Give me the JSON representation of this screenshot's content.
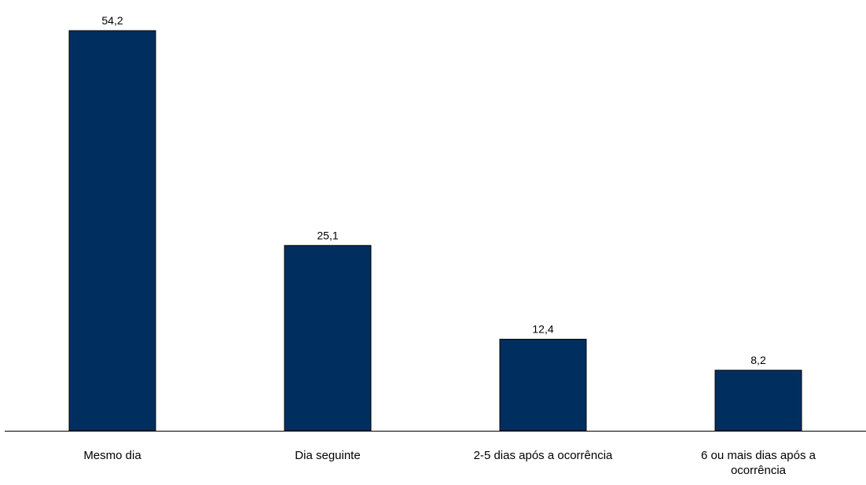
{
  "chart_data": {
    "type": "bar",
    "title": "",
    "xlabel": "",
    "ylabel": "",
    "categories": [
      [
        "Mesmo dia"
      ],
      [
        "Dia seguinte"
      ],
      [
        "2-5 dias após a ocorrência"
      ],
      [
        "6 ou mais dias após a",
        "ocorrência"
      ]
    ],
    "values": [
      54.2,
      25.1,
      12.4,
      8.2
    ],
    "value_labels": [
      "54,2",
      "25,1",
      "12,4",
      "8,2"
    ],
    "ylim": [
      0,
      54.2
    ],
    "y_axis_visible": false,
    "grid": false,
    "legend": "none",
    "colors": {
      "bar": "#002F5F",
      "bar_stroke": "#000000",
      "axis": "#000000",
      "text": "#000000"
    }
  }
}
